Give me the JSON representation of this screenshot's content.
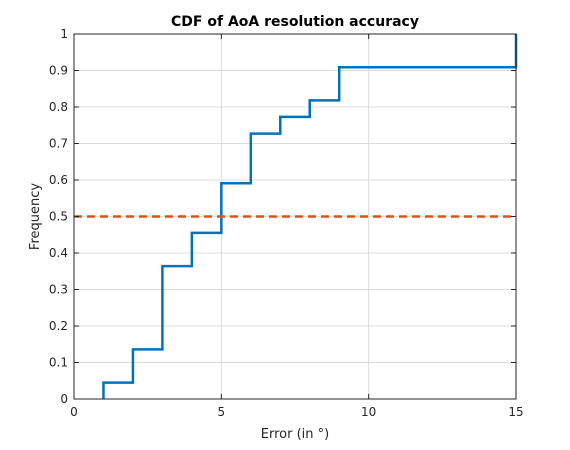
{
  "chart_data": {
    "type": "line",
    "title": "CDF of AoA resolution accuracy",
    "xlabel": "Error (in °)",
    "ylabel": "Frequency",
    "xlim": [
      0,
      15
    ],
    "ylim": [
      0,
      1
    ],
    "xticks": [
      "0",
      "5",
      "10",
      "15"
    ],
    "yticks": [
      "0",
      "0.1",
      "0.2",
      "0.3",
      "0.4",
      "0.5",
      "0.6",
      "0.7",
      "0.8",
      "0.9",
      "1"
    ],
    "grid": true,
    "series": [
      {
        "style": "stairs",
        "color": "#0072bd",
        "x": [
          1,
          1,
          2,
          2,
          3,
          3,
          4,
          4,
          5,
          5,
          6,
          6,
          7,
          7,
          8,
          8,
          9,
          9,
          15,
          15
        ],
        "y": [
          0,
          0.045,
          0.045,
          0.136,
          0.136,
          0.364,
          0.364,
          0.455,
          0.455,
          0.591,
          0.591,
          0.727,
          0.727,
          0.773,
          0.773,
          0.818,
          0.818,
          0.909,
          0.909,
          1
        ]
      },
      {
        "style": "dashed",
        "color": "#d95319",
        "x": [
          0,
          15
        ],
        "y": [
          0.5,
          0.5
        ]
      }
    ]
  }
}
